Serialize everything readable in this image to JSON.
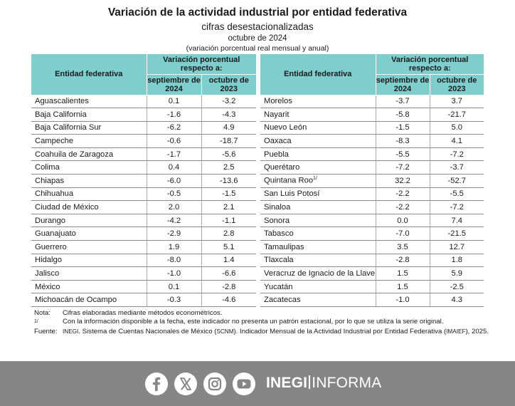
{
  "title": "Variación de la actividad industrial por entidad federativa",
  "subtitle": "cifras desestacionalizadas",
  "period": "octubre de 2024",
  "note_units": "(variación porcentual real mensual y anual)",
  "table": {
    "col_entity": "Entidad federativa",
    "col_group": "Variación porcentual respecto a:",
    "col_sep": "septiembre de 2024",
    "col_oct": "octubre de 2023",
    "left": [
      {
        "name": "Aguascalientes",
        "sep": "0.1",
        "oct": "-3.2"
      },
      {
        "name": "Baja California",
        "sep": "-1.6",
        "oct": "-4.3"
      },
      {
        "name": "Baja California Sur",
        "sep": "-6.2",
        "oct": "4.9"
      },
      {
        "name": "Campeche",
        "sep": "-0.6",
        "oct": "-18.7"
      },
      {
        "name": "Coahuila de Zaragoza",
        "sep": "-1.7",
        "oct": "-5.6"
      },
      {
        "name": "Colima",
        "sep": "0.4",
        "oct": "2.5"
      },
      {
        "name": "Chiapas",
        "sep": "-6.0",
        "oct": "-13.6"
      },
      {
        "name": "Chihuahua",
        "sep": "-0.5",
        "oct": "-1.5"
      },
      {
        "name": "Ciudad de México",
        "sep": "2.0",
        "oct": "2.1"
      },
      {
        "name": "Durango",
        "sep": "-4.2",
        "oct": "-1.1"
      },
      {
        "name": "Guanajuato",
        "sep": "-2.9",
        "oct": "2.8"
      },
      {
        "name": "Guerrero",
        "sep": "1.9",
        "oct": "5.1"
      },
      {
        "name": "Hidalgo",
        "sep": "-8.0",
        "oct": "1.4"
      },
      {
        "name": "Jalisco",
        "sep": "-1.0",
        "oct": "-6.6"
      },
      {
        "name": "México",
        "sep": "0.1",
        "oct": "-2.8"
      },
      {
        "name": "Michoacán de Ocampo",
        "sep": "-0.3",
        "oct": "-4.6"
      }
    ],
    "right": [
      {
        "name": "Morelos",
        "sup": "",
        "sep": "-3.7",
        "oct": "3.7"
      },
      {
        "name": "Nayarit",
        "sup": "",
        "sep": "-5.8",
        "oct": "-21.7"
      },
      {
        "name": "Nuevo León",
        "sup": "",
        "sep": "-1.5",
        "oct": "5.0"
      },
      {
        "name": "Oaxaca",
        "sup": "",
        "sep": "-8.3",
        "oct": "4.1"
      },
      {
        "name": "Puebla",
        "sup": "",
        "sep": "-5.5",
        "oct": "-7.2"
      },
      {
        "name": "Querétaro",
        "sup": "",
        "sep": "-7.2",
        "oct": "-3.7"
      },
      {
        "name": "Quintana Roo",
        "sup": "1/",
        "sep": "32.2",
        "oct": "-52.7"
      },
      {
        "name": "San Luis Potosí",
        "sup": "",
        "sep": "-2.2",
        "oct": "-5.5"
      },
      {
        "name": "Sinaloa",
        "sup": "",
        "sep": "-2.2",
        "oct": "-7.2"
      },
      {
        "name": "Sonora",
        "sup": "",
        "sep": "0.0",
        "oct": "7.4"
      },
      {
        "name": "Tabasco",
        "sup": "",
        "sep": "-7.0",
        "oct": "-21.5"
      },
      {
        "name": "Tamaulipas",
        "sup": "",
        "sep": "3.5",
        "oct": "12.7"
      },
      {
        "name": "Tlaxcala",
        "sup": "",
        "sep": "-2.8",
        "oct": "1.8"
      },
      {
        "name": "Veracruz de Ignacio de la Llave",
        "sup": "",
        "sep": "1.5",
        "oct": "5.9"
      },
      {
        "name": "Yucatán",
        "sup": "",
        "sep": "1.5",
        "oct": "-2.5"
      },
      {
        "name": "Zacatecas",
        "sup": "",
        "sep": "-1.0",
        "oct": "4.3"
      }
    ]
  },
  "notes": {
    "nota_label": "Nota:",
    "nota_text": "Cifras elaboradas mediante métodos econométricos.",
    "fn_label": "1/",
    "fn_text": "Con la información disponible a la fecha, este indicador no presenta un patrón estacional, por lo que se utiliza la serie original.",
    "fuente_label": "Fuente:",
    "fuente_inegi": "INEGI",
    "fuente_p1": ". Sistema de Cuentas Nacionales de México (",
    "fuente_scnm": "SCNM",
    "fuente_p2": "). Indicador Mensual de la Actividad Industrial por Entidad Federativa (",
    "fuente_imaief": "IMAIEF",
    "fuente_p3": "), 2025."
  },
  "footer": {
    "icons": [
      "facebook-icon",
      "x-icon",
      "instagram-icon",
      "youtube-icon"
    ],
    "brand_bold": "INEGI",
    "brand_light": "INFORMA",
    "bg": "#868686",
    "header_color": "#7fcece"
  }
}
